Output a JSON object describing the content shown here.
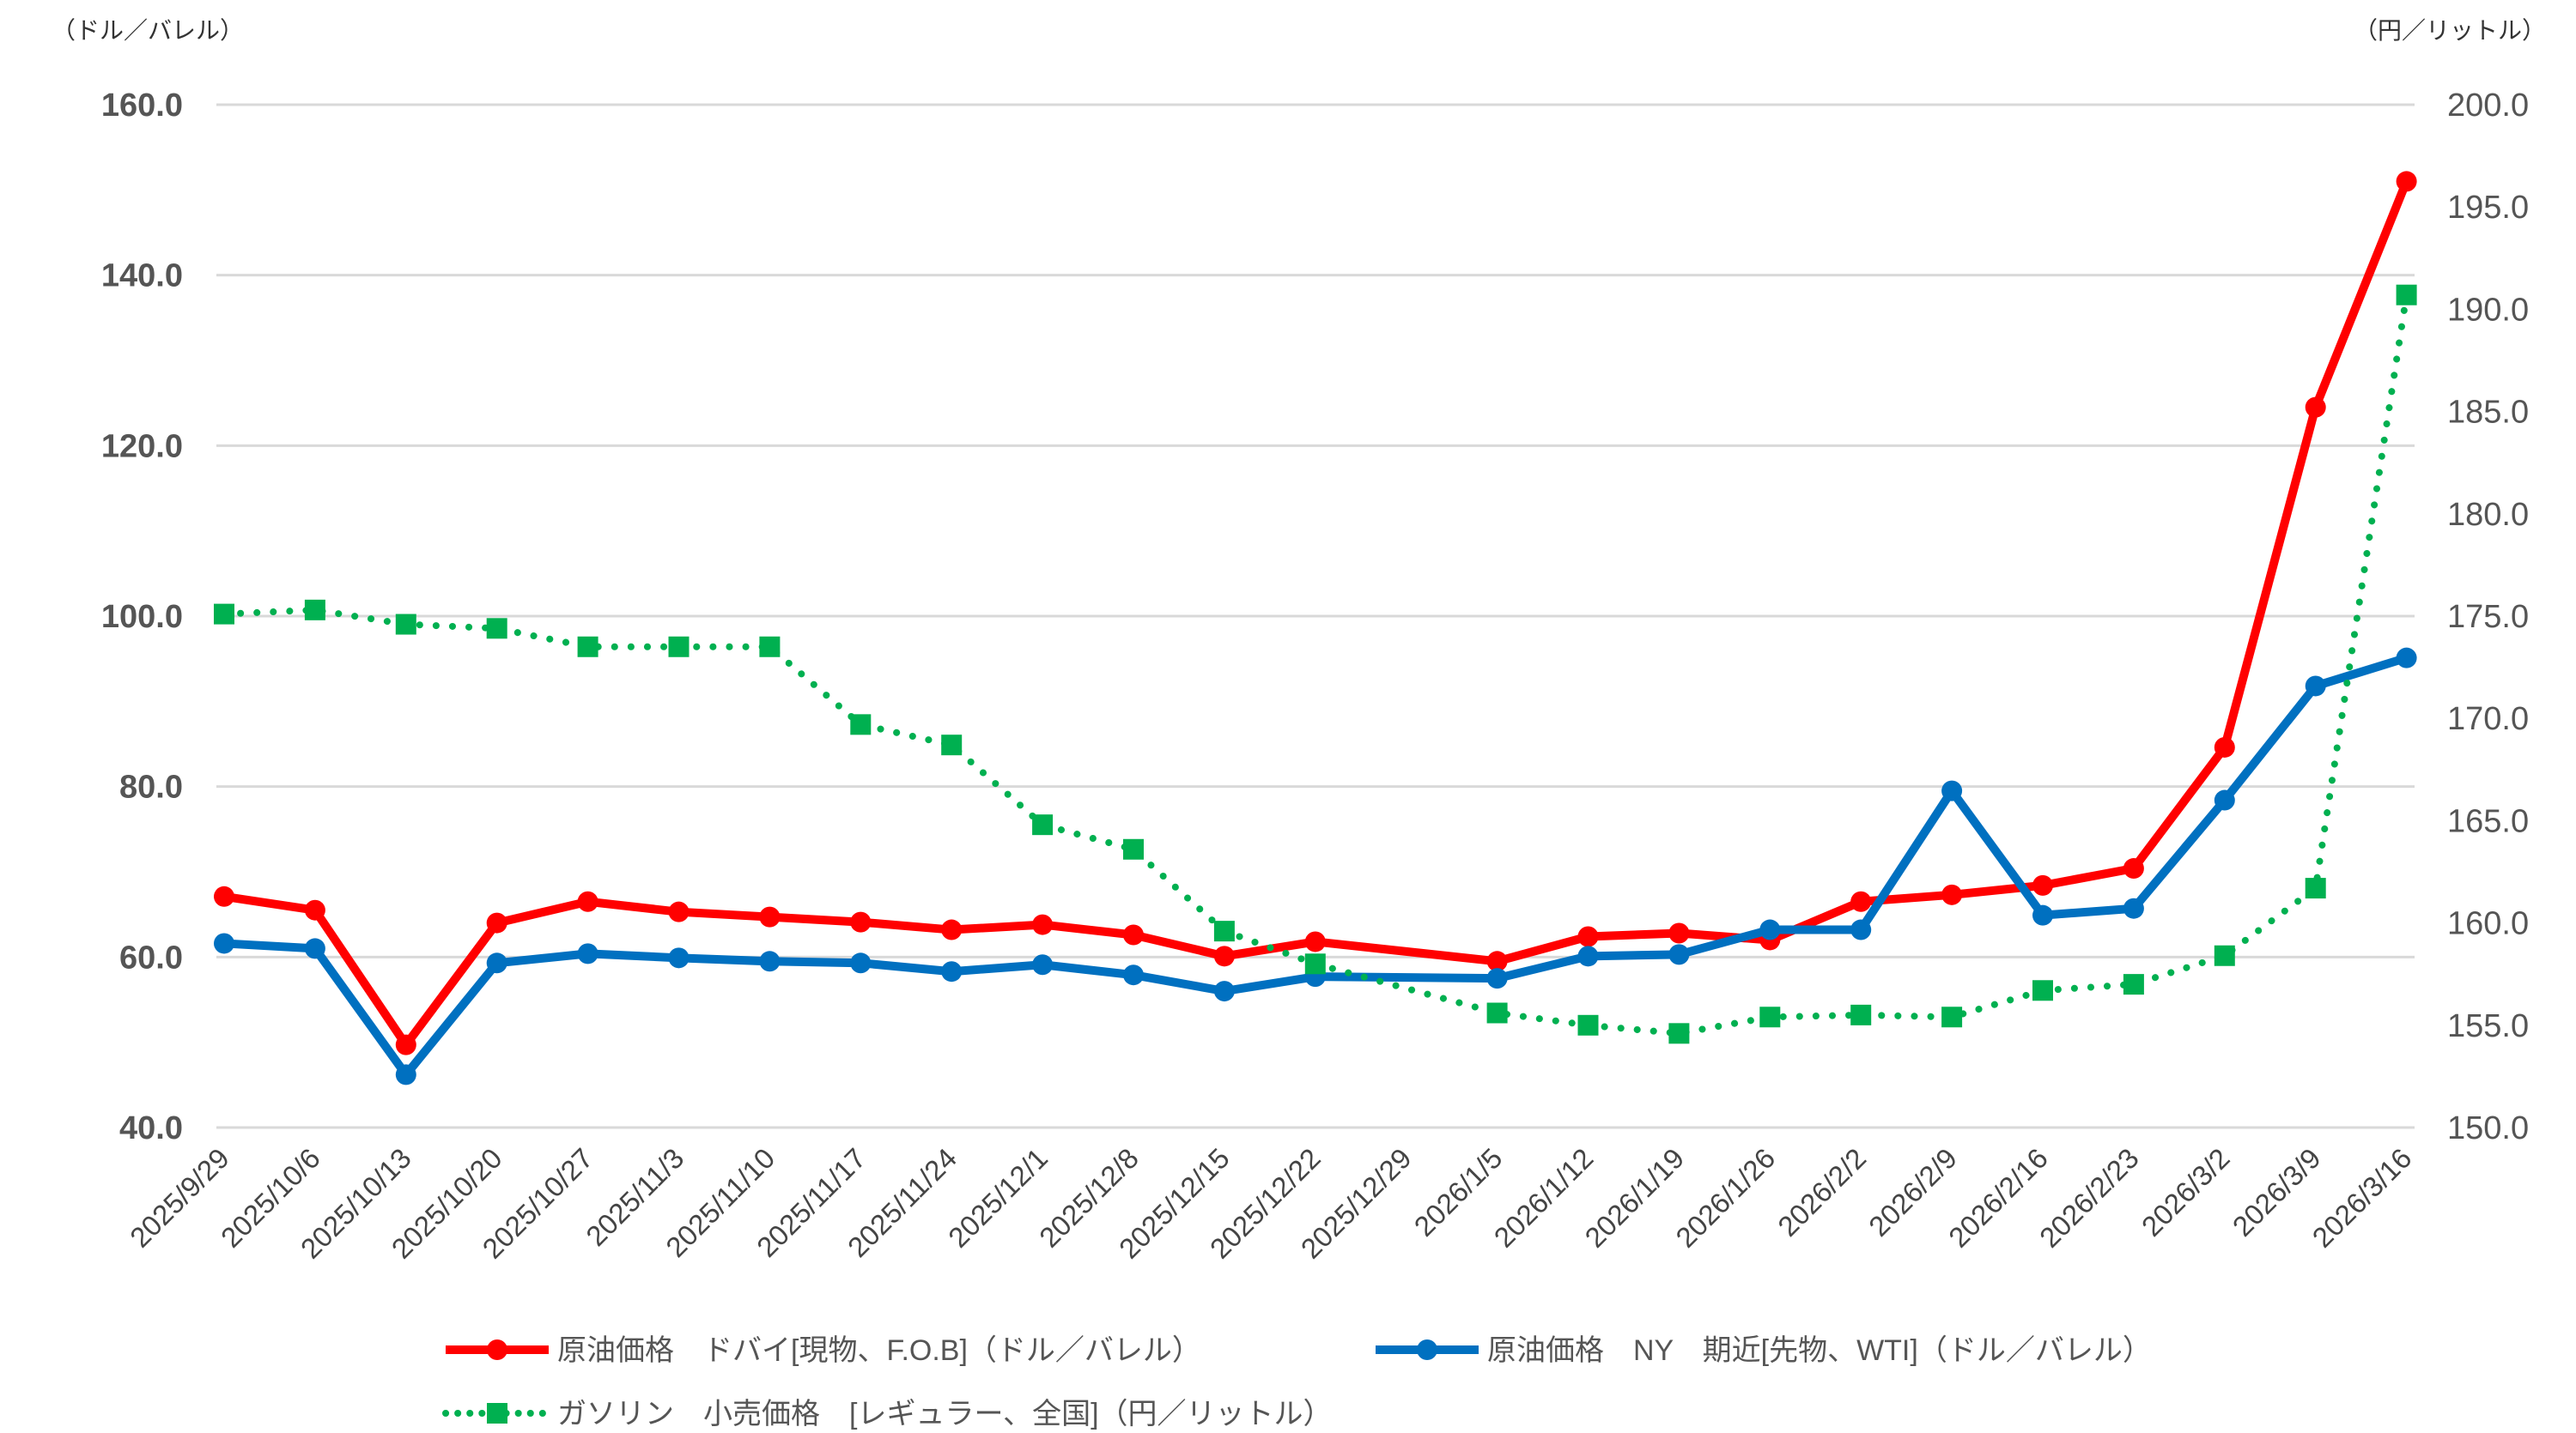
{
  "chart_data": {
    "type": "line",
    "left_axis_label": "（ドル／バレル）",
    "right_axis_label": "（円／リットル）",
    "ylim_left": [
      40,
      160
    ],
    "ylim_right": [
      150,
      200
    ],
    "left_ticks": [
      "40.0",
      "60.0",
      "80.0",
      "100.0",
      "120.0",
      "140.0",
      "160.0"
    ],
    "right_ticks": [
      "150.0",
      "155.0",
      "160.0",
      "165.0",
      "170.0",
      "175.0",
      "180.0",
      "185.0",
      "190.0",
      "195.0",
      "200.0"
    ],
    "grid": true,
    "legend_position": "bottom",
    "categories": [
      "2025/9/29",
      "2025/10/6",
      "2025/10/13",
      "2025/10/20",
      "2025/10/27",
      "2025/11/3",
      "2025/11/10",
      "2025/11/17",
      "2025/11/24",
      "2025/12/1",
      "2025/12/8",
      "2025/12/15",
      "2025/12/22",
      "2025/12/29",
      "2026/1/5",
      "2026/1/12",
      "2026/1/19",
      "2026/1/26",
      "2026/2/2",
      "2026/2/9",
      "2026/2/16",
      "2026/2/23",
      "2026/3/2",
      "2026/3/9",
      "2026/3/16"
    ],
    "series": [
      {
        "name": "原油価格　ドバイ[現物、F.O.B]（ドル／バレル）",
        "axis": "left",
        "color": "#ff0000",
        "marker": "circle",
        "style": "solid",
        "values": [
          67.1,
          65.5,
          49.7,
          64.0,
          66.5,
          65.3,
          64.7,
          64.1,
          63.2,
          63.8,
          62.6,
          60.1,
          61.8,
          null,
          59.5,
          62.4,
          62.8,
          62.0,
          66.5,
          67.3,
          68.4,
          70.4,
          84.6,
          124.5,
          151.0
        ]
      },
      {
        "name": "原油価格　NY　期近[先物、WTI]（ドル／バレル）",
        "axis": "left",
        "color": "#0070c0",
        "marker": "circle",
        "style": "solid",
        "values": [
          61.6,
          61.0,
          46.2,
          59.3,
          60.4,
          59.9,
          59.5,
          59.3,
          58.3,
          59.1,
          57.9,
          56.0,
          57.7,
          null,
          57.5,
          60.1,
          60.3,
          63.2,
          63.2,
          79.5,
          64.9,
          65.7,
          78.4,
          91.8,
          95.1
        ]
      },
      {
        "name": "ガソリン　小売価格　[レギュラー、全国]（円／リットル）",
        "axis": "right",
        "color": "#00b050",
        "marker": "square",
        "style": "dotted",
        "values": [
          175.1,
          175.3,
          174.6,
          174.4,
          173.5,
          173.5,
          173.5,
          169.7,
          168.7,
          164.8,
          163.6,
          159.6,
          158.0,
          null,
          155.6,
          155.0,
          154.6,
          155.4,
          155.5,
          155.4,
          156.7,
          157.0,
          158.4,
          161.7,
          190.7
        ]
      }
    ]
  }
}
